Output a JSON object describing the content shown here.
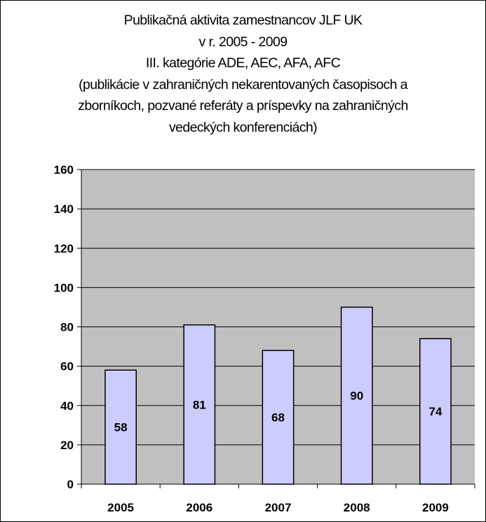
{
  "chart_data": {
    "type": "bar",
    "title_lines": [
      "Publikačná aktivita zamestnancov JLF UK",
      "v r. 2005 - 2009",
      "III. kategórie ADE, AEC, AFA, AFC",
      "(publikácie v zahraničných nekarentovaných časopisoch a",
      "zborníkoch, pozvané referáty a príspevky na zahraničných",
      "vedeckých  konferenciách)"
    ],
    "categories": [
      "2005",
      "2006",
      "2007",
      "2008",
      "2009"
    ],
    "values": [
      58,
      81,
      68,
      90,
      74
    ],
    "value_labels": [
      "58",
      "81",
      "68",
      "90",
      "74"
    ],
    "ylim": [
      0,
      160
    ],
    "yticks": [
      "0",
      "20",
      "40",
      "60",
      "80",
      "100",
      "120",
      "140",
      "160"
    ],
    "grid": true,
    "legend": "none",
    "colors": {
      "plot_background": "#C0C0C0",
      "bar_fill": "#CCCCFF",
      "bar_stroke": "#000000",
      "grid": "#000000"
    }
  }
}
